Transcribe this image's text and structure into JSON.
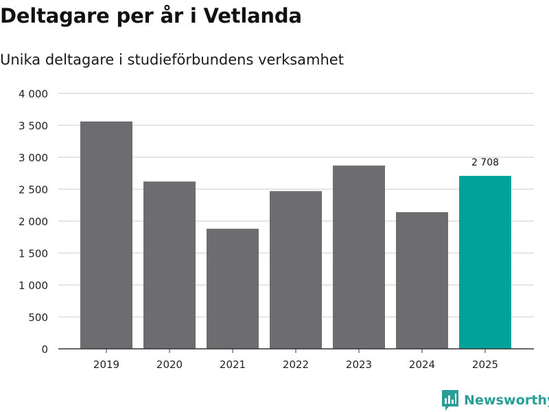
{
  "chart_data": {
    "type": "bar",
    "title": "Deltagare per år i Vetlanda",
    "subtitle": "Unika deltagare i studieförbundens verksamhet",
    "xlabel": "",
    "ylabel": "",
    "categories": [
      "2019",
      "2020",
      "2021",
      "2022",
      "2023",
      "2024",
      "2025"
    ],
    "values": [
      3560,
      2620,
      1880,
      2470,
      2870,
      2140,
      2708
    ],
    "ylim": [
      0,
      4000
    ],
    "yticks": [
      0,
      500,
      1000,
      1500,
      2000,
      2500,
      3000,
      3500,
      4000
    ],
    "ytick_labels": [
      "0",
      "500",
      "1 000",
      "1 500",
      "2 000",
      "2 500",
      "3 000",
      "3 500",
      "4 000"
    ],
    "grid": true,
    "bar_color": "#6d6c71",
    "highlight_color": "#00a39a",
    "highlight_index": 6,
    "data_labels": [
      {
        "index": 6,
        "text": "2 708"
      }
    ]
  },
  "brand": {
    "name": "Newsworthy",
    "icon": "newsworthy-logo-icon",
    "color": "#2a9d96"
  }
}
